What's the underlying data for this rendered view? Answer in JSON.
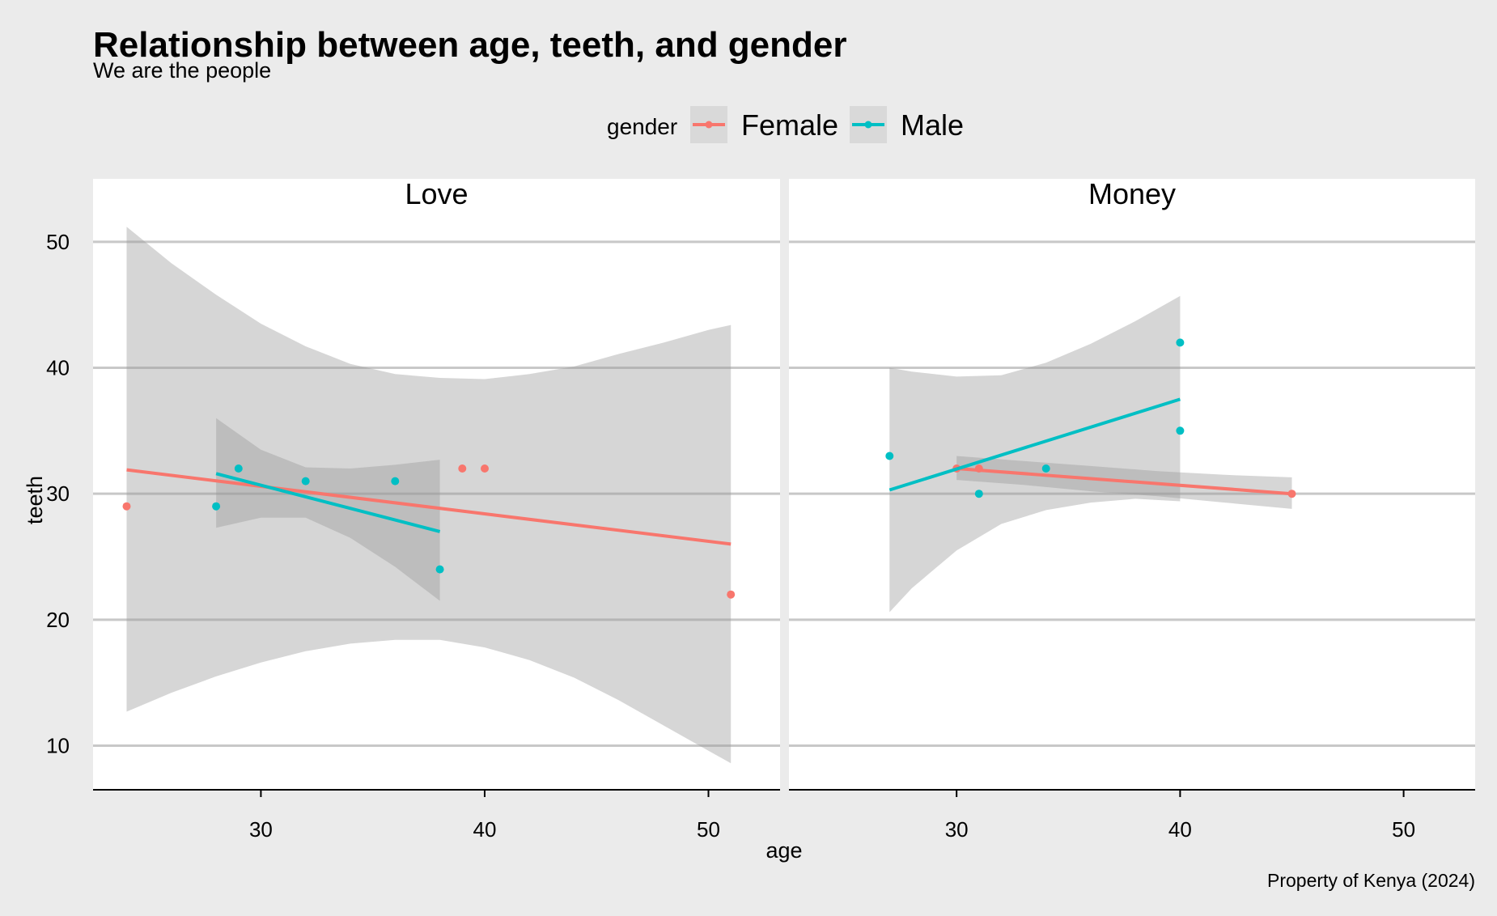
{
  "chart_data": {
    "type": "scatter",
    "title": "Relationship between age, teeth, and gender",
    "subtitle": "We are the people",
    "caption": "Property of Kenya (2024)",
    "xlabel": "age",
    "ylabel": "teeth",
    "xlim": [
      22.5,
      53.2
    ],
    "ylim": [
      6.5,
      55
    ],
    "x_ticks": [
      30,
      40,
      50
    ],
    "y_ticks": [
      10,
      20,
      30,
      40,
      50
    ],
    "grid": "horizontal major gridlines only",
    "legend": {
      "title": "gender",
      "position": "top",
      "entries": [
        {
          "name": "Female",
          "color": "#f8766d"
        },
        {
          "name": "Male",
          "color": "#00bfc4"
        }
      ]
    },
    "facets": [
      {
        "label": "Love",
        "series": [
          {
            "name": "Female",
            "color": "#f8766d",
            "points": [
              [
                24,
                29
              ],
              [
                39,
                32
              ],
              [
                40,
                32
              ],
              [
                51,
                22
              ]
            ],
            "trend": {
              "x": [
                24,
                51
              ],
              "y": [
                31.9,
                26.0
              ]
            },
            "band": {
              "x": [
                24,
                26,
                28,
                30,
                32,
                34,
                36,
                38,
                40,
                42,
                44,
                46,
                48,
                50,
                51
              ],
              "lower": [
                12.7,
                14.2,
                15.5,
                16.6,
                17.5,
                18.1,
                18.4,
                18.4,
                17.8,
                16.8,
                15.4,
                13.6,
                11.6,
                9.6,
                8.6
              ],
              "upper": [
                51.2,
                48.3,
                45.8,
                43.5,
                41.7,
                40.3,
                39.5,
                39.2,
                39.1,
                39.5,
                40.1,
                41.1,
                42.0,
                43.0,
                43.4
              ]
            }
          },
          {
            "name": "Male",
            "color": "#00bfc4",
            "points": [
              [
                28,
                29
              ],
              [
                29,
                32
              ],
              [
                32,
                31
              ],
              [
                36,
                31
              ],
              [
                38,
                24
              ]
            ],
            "trend": {
              "x": [
                28,
                38
              ],
              "y": [
                31.6,
                27.0
              ]
            },
            "band": {
              "x": [
                28,
                30,
                32,
                34,
                36,
                38
              ],
              "lower": [
                27.3,
                28.1,
                28.1,
                26.5,
                24.2,
                21.5
              ],
              "upper": [
                36.0,
                33.5,
                32.1,
                32.0,
                32.3,
                32.7
              ]
            }
          }
        ]
      },
      {
        "label": "Money",
        "series": [
          {
            "name": "Female",
            "color": "#f8766d",
            "points": [
              [
                30,
                32
              ],
              [
                31,
                32
              ],
              [
                45,
                30
              ]
            ],
            "trend": {
              "x": [
                30,
                45
              ],
              "y": [
                32.0,
                30.0
              ]
            },
            "band": {
              "x": [
                30,
                33,
                36,
                39,
                42,
                45
              ],
              "lower": [
                31.1,
                30.7,
                30.2,
                29.8,
                29.3,
                28.8
              ],
              "upper": [
                33.0,
                32.6,
                32.2,
                31.8,
                31.5,
                31.3
              ]
            }
          },
          {
            "name": "Male",
            "color": "#00bfc4",
            "points": [
              [
                27,
                33
              ],
              [
                31,
                30
              ],
              [
                34,
                32
              ],
              [
                40,
                35
              ],
              [
                40,
                42
              ]
            ],
            "trend": {
              "x": [
                27,
                40
              ],
              "y": [
                30.3,
                37.5
              ]
            },
            "band": {
              "x": [
                27,
                28,
                30,
                32,
                34,
                36,
                38,
                40
              ],
              "lower": [
                20.6,
                22.5,
                25.5,
                27.6,
                28.7,
                29.3,
                29.6,
                29.4
              ],
              "upper": [
                40.0,
                39.7,
                39.3,
                39.4,
                40.4,
                41.9,
                43.7,
                45.7
              ]
            }
          }
        ]
      }
    ]
  }
}
